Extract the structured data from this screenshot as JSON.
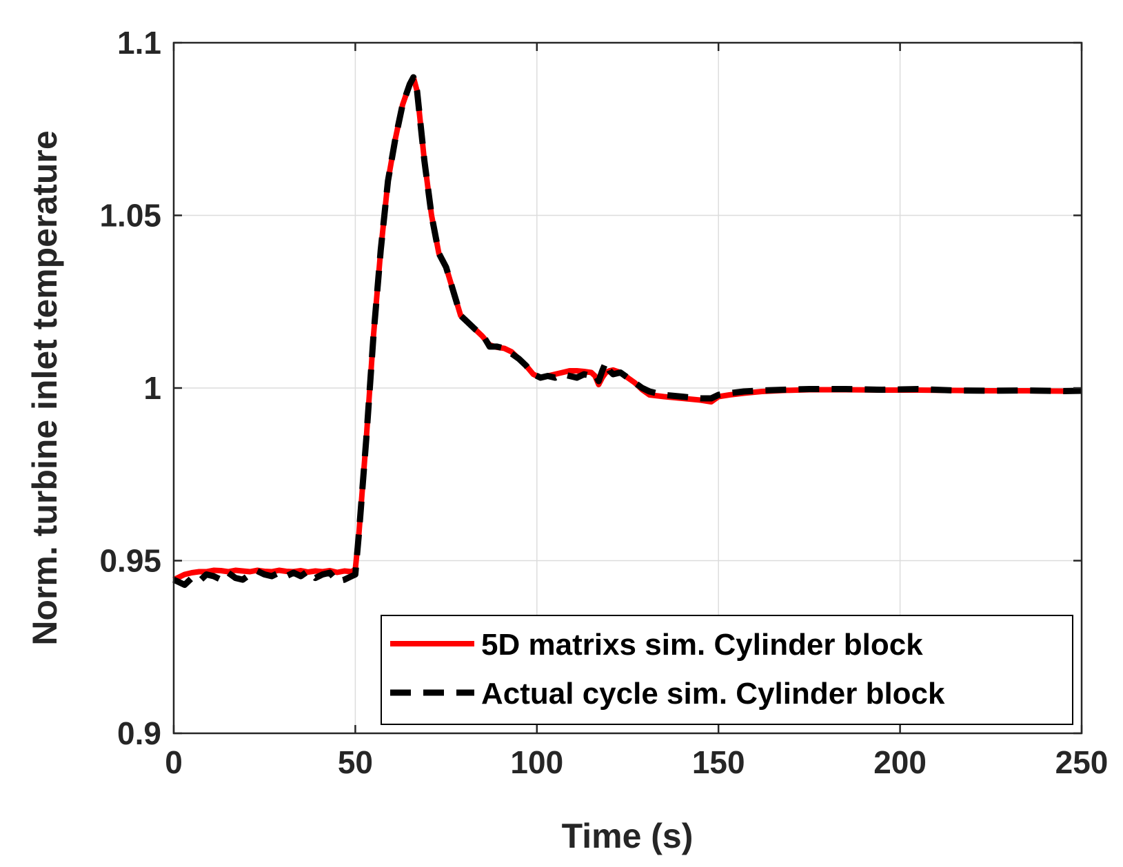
{
  "chart_data": {
    "type": "line",
    "title": "",
    "xlabel": "Time (s)",
    "ylabel": "Norm. turbine inlet temperature",
    "xlim": [
      0,
      250
    ],
    "ylim": [
      0.9,
      1.1
    ],
    "xticks": [
      0,
      50,
      100,
      150,
      200,
      250
    ],
    "yticks": [
      0.9,
      0.95,
      1,
      1.05,
      1.1
    ],
    "xtick_labels": [
      "0",
      "50",
      "100",
      "150",
      "200",
      "250"
    ],
    "ytick_labels": [
      "0.9",
      "0.95",
      "1",
      "1.05",
      "1.1"
    ],
    "grid": true,
    "legend_position": "bottom-right",
    "series": [
      {
        "name": "5D matrixs sim. Cylinder block",
        "color": "#ff0000",
        "style": "solid",
        "x": [
          0,
          1,
          3,
          5,
          7,
          9,
          11,
          13,
          15,
          17,
          19,
          21,
          23,
          25,
          27,
          29,
          31,
          33,
          35,
          37,
          39,
          41,
          43,
          45,
          47,
          49,
          50,
          51,
          53,
          55,
          57,
          59,
          61,
          63,
          65,
          66,
          67,
          69,
          71,
          73,
          75,
          77,
          79,
          81,
          83,
          85,
          87,
          89,
          91,
          93,
          95,
          97,
          99,
          101,
          103,
          105,
          107,
          109,
          111,
          113,
          115,
          116,
          117,
          118,
          119,
          120,
          121,
          123,
          125,
          127,
          129,
          131,
          135,
          140,
          145,
          148,
          150,
          153,
          157,
          162,
          168,
          175,
          185,
          195,
          205,
          215,
          225,
          235,
          245,
          250
        ],
        "y": [
          0.9445,
          0.945,
          0.946,
          0.9465,
          0.9468,
          0.9468,
          0.9472,
          0.9471,
          0.9468,
          0.9472,
          0.947,
          0.9468,
          0.9472,
          0.9469,
          0.9468,
          0.9472,
          0.9469,
          0.9468,
          0.9471,
          0.9467,
          0.947,
          0.9468,
          0.9471,
          0.9466,
          0.947,
          0.9468,
          0.9475,
          0.958,
          0.985,
          1.015,
          1.04,
          1.06,
          1.072,
          1.082,
          1.088,
          1.09,
          1.086,
          1.066,
          1.05,
          1.039,
          1.035,
          1.028,
          1.021,
          1.019,
          1.017,
          1.015,
          1.0125,
          1.0118,
          1.0115,
          1.0105,
          1.0085,
          1.0065,
          1.004,
          1.003,
          1.0035,
          1.004,
          1.0045,
          1.005,
          1.005,
          1.0048,
          1.0045,
          1.0035,
          1.001,
          1.003,
          1.0045,
          1.005,
          1.0052,
          1.0045,
          1.003,
          1.0015,
          0.9995,
          0.998,
          0.9975,
          0.997,
          0.9965,
          0.996,
          0.9975,
          0.998,
          0.9985,
          0.999,
          0.9993,
          0.9995,
          0.9995,
          0.9994,
          0.9994,
          0.9993,
          0.9992,
          0.9992,
          0.9991,
          0.9991
        ]
      },
      {
        "name": "Actual cycle sim. Cylinder block",
        "color": "#000000",
        "style": "dashed",
        "x": [
          0,
          1,
          3,
          5,
          7,
          9,
          11,
          13,
          15,
          17,
          19,
          21,
          23,
          25,
          27,
          29,
          31,
          33,
          35,
          37,
          39,
          41,
          43,
          45,
          47,
          49,
          50,
          51,
          53,
          55,
          57,
          59,
          61,
          63,
          65,
          66,
          67,
          69,
          71,
          73,
          75,
          77,
          79,
          81,
          83,
          85,
          87,
          89,
          91,
          93,
          95,
          97,
          99,
          101,
          103,
          105,
          107,
          109,
          111,
          113,
          115,
          116,
          117,
          118,
          119,
          120,
          121,
          123,
          125,
          127,
          129,
          131,
          135,
          140,
          145,
          148,
          150,
          153,
          157,
          162,
          168,
          175,
          185,
          195,
          205,
          215,
          225,
          235,
          245,
          250
        ],
        "y": [
          0.9445,
          0.944,
          0.943,
          0.945,
          0.944,
          0.946,
          0.9455,
          0.9445,
          0.9465,
          0.945,
          0.9445,
          0.946,
          0.947,
          0.946,
          0.9455,
          0.9465,
          0.9455,
          0.9465,
          0.9455,
          0.947,
          0.945,
          0.946,
          0.9465,
          0.944,
          0.9445,
          0.9455,
          0.946,
          0.958,
          0.985,
          1.015,
          1.04,
          1.06,
          1.072,
          1.082,
          1.088,
          1.09,
          1.086,
          1.066,
          1.05,
          1.039,
          1.035,
          1.028,
          1.021,
          1.019,
          1.017,
          1.0155,
          1.012,
          1.012,
          1.0115,
          1.01,
          1.0085,
          1.0065,
          1.004,
          1.003,
          1.0035,
          1.003,
          1.004,
          1.0035,
          1.003,
          1.004,
          1.0035,
          1.004,
          1.002,
          1.005,
          1.0075,
          1.005,
          1.004,
          1.0045,
          1.003,
          1.0015,
          1.0,
          0.999,
          0.998,
          0.9975,
          0.997,
          0.997,
          0.998,
          0.9985,
          0.999,
          0.9993,
          0.9995,
          0.9997,
          0.9997,
          0.9995,
          0.9997,
          0.9993,
          0.9992,
          0.9993,
          0.9991,
          0.9992
        ]
      }
    ]
  }
}
